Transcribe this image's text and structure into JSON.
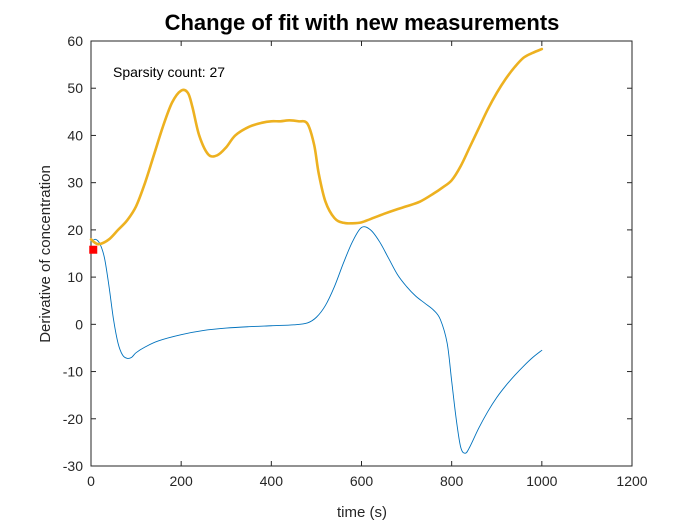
{
  "chart_data": {
    "type": "line",
    "title": "Change of fit with new measurements",
    "xlabel": "time (s)",
    "ylabel": "Derivative of concentration",
    "xlim": [
      0,
      1200
    ],
    "ylim": [
      -30,
      60
    ],
    "xticks": [
      0,
      200,
      400,
      600,
      800,
      1000,
      1200
    ],
    "yticks": [
      -30,
      -20,
      -10,
      0,
      10,
      20,
      30,
      40,
      50,
      60
    ],
    "grid": false,
    "annotation": "Sparsity count: 27",
    "series": [
      {
        "color": "#0072BD",
        "line_width": "thin",
        "x": [
          0,
          10,
          20,
          30,
          40,
          50,
          60,
          70,
          80,
          90,
          100,
          120,
          150,
          200,
          250,
          300,
          350,
          400,
          450,
          480,
          500,
          520,
          540,
          560,
          580,
          600,
          620,
          640,
          660,
          680,
          700,
          720,
          740,
          760,
          775,
          790,
          800,
          810,
          820,
          830,
          840,
          860,
          880,
          900,
          920,
          940,
          960,
          980,
          1000
        ],
        "y": [
          17.5,
          18,
          17,
          14,
          8,
          1,
          -4,
          -6.5,
          -7.2,
          -7,
          -6,
          -4.8,
          -3.5,
          -2.2,
          -1.3,
          -0.8,
          -0.5,
          -0.3,
          -0.1,
          0.3,
          1.5,
          4,
          8,
          13,
          17.5,
          20.5,
          20,
          17.5,
          14,
          10.5,
          8,
          6,
          4.5,
          3,
          1,
          -4,
          -12,
          -20,
          -26,
          -27.3,
          -26,
          -22,
          -18.5,
          -15.5,
          -13,
          -10.8,
          -8.8,
          -7,
          -5.5
        ]
      },
      {
        "color": "#EDB120",
        "line_width": "thick",
        "x": [
          0,
          10,
          20,
          40,
          60,
          80,
          100,
          120,
          140,
          160,
          180,
          200,
          215,
          225,
          240,
          260,
          280,
          300,
          320,
          350,
          380,
          400,
          420,
          440,
          460,
          480,
          495,
          505,
          520,
          540,
          560,
          580,
          600,
          620,
          650,
          680,
          700,
          730,
          760,
          780,
          800,
          820,
          840,
          860,
          880,
          900,
          920,
          940,
          960,
          980,
          1000
        ],
        "y": [
          18,
          17.2,
          17,
          18,
          20,
          22,
          25,
          30,
          36,
          42,
          47,
          49.5,
          49,
          46,
          40,
          36,
          35.8,
          37.5,
          40,
          41.8,
          42.7,
          43,
          43,
          43.2,
          43,
          42.5,
          38,
          32,
          26,
          22.5,
          21.5,
          21.4,
          21.6,
          22.3,
          23.4,
          24.4,
          25,
          26,
          27.7,
          29,
          30.5,
          33.5,
          37.5,
          41.5,
          45.5,
          49,
          52,
          54.5,
          56.5,
          57.5,
          58.3
        ]
      }
    ],
    "markers": [
      {
        "x": 5,
        "y": 15.8,
        "color": "#FF0000",
        "shape": "square"
      }
    ]
  }
}
